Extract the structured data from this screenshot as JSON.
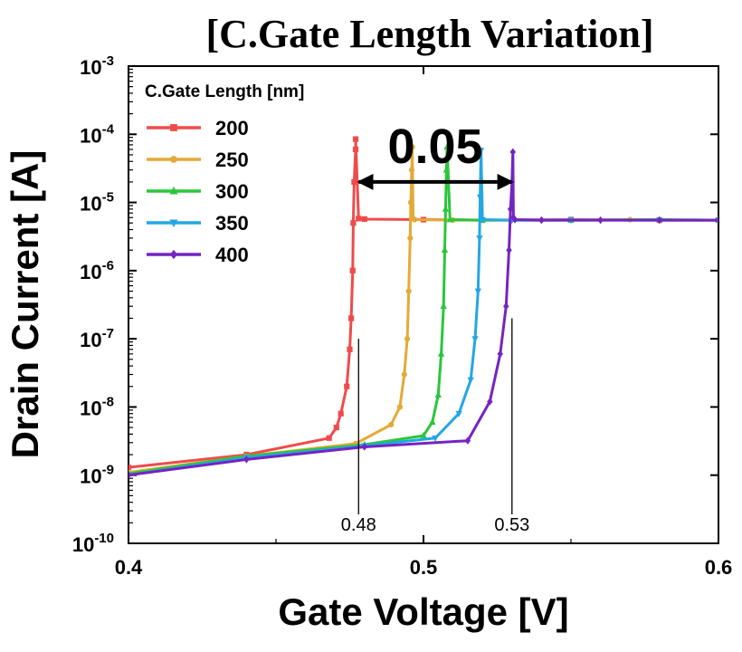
{
  "chart_data": {
    "type": "line",
    "title": "[C.Gate Length Variation]",
    "xlabel": "Gate Voltage [V]",
    "ylabel": "Drain Current [A]",
    "xlim": [
      0.4,
      0.6
    ],
    "ylim": [
      1e-10,
      0.001
    ],
    "yscale": "log",
    "x_ticks": [
      {
        "value": 0.4,
        "label": "0.4"
      },
      {
        "value": 0.5,
        "label": "0.5"
      },
      {
        "value": 0.6,
        "label": "0.6"
      }
    ],
    "y_ticks": [
      {
        "value": 0.001,
        "base": "10",
        "exp": "-3"
      },
      {
        "value": 0.0001,
        "base": "10",
        "exp": "-4"
      },
      {
        "value": 1e-05,
        "base": "10",
        "exp": "-5"
      },
      {
        "value": 1e-06,
        "base": "10",
        "exp": "-6"
      },
      {
        "value": 1e-07,
        "base": "10",
        "exp": "-7"
      },
      {
        "value": 1e-08,
        "base": "10",
        "exp": "-8"
      },
      {
        "value": 1e-09,
        "base": "10",
        "exp": "-9"
      },
      {
        "value": 1e-10,
        "base": "10",
        "exp": "-10"
      }
    ],
    "legend": {
      "title": "C.Gate Length [nm]",
      "placement": "top-left"
    },
    "grid": false,
    "series": [
      {
        "name": "200",
        "color": "#ef4b4b",
        "marker": "square",
        "x": [
          0.4,
          0.44,
          0.468,
          0.4705,
          0.472,
          0.474,
          0.475,
          0.4755,
          0.476,
          0.4762,
          0.4765,
          0.477,
          0.477,
          0.478,
          0.48,
          0.5,
          0.52,
          0.55,
          0.58,
          0.6
        ],
        "y": [
          1.3e-09,
          2e-09,
          3.5e-09,
          5e-09,
          8e-09,
          2e-08,
          7e-08,
          2e-07,
          1e-06,
          5e-06,
          2e-05,
          6e-05,
          8.5e-05,
          5.8e-06,
          5.7e-06,
          5.6e-06,
          5.5e-06,
          5.6e-06,
          5.5e-06,
          5.5e-06
        ]
      },
      {
        "name": "250",
        "color": "#e3aa38",
        "marker": "circle",
        "x": [
          0.4,
          0.44,
          0.477,
          0.489,
          0.492,
          0.4935,
          0.4945,
          0.495,
          0.4955,
          0.4957,
          0.496,
          0.4962,
          0.4965,
          0.497,
          0.51,
          0.54,
          0.57,
          0.6
        ],
        "y": [
          1.1e-09,
          1.9e-09,
          2.9e-09,
          5.5e-09,
          1e-08,
          3e-08,
          1e-07,
          5e-07,
          3e-06,
          1e-05,
          3e-05,
          6.5e-05,
          5.8e-06,
          5.6e-06,
          5.5e-06,
          5.5e-06,
          5.6e-06,
          5.5e-06
        ]
      },
      {
        "name": "300",
        "color": "#2ac63a",
        "marker": "triangle",
        "x": [
          0.4,
          0.44,
          0.48,
          0.5,
          0.503,
          0.505,
          0.506,
          0.5068,
          0.5072,
          0.5075,
          0.5078,
          0.508,
          0.509,
          0.52,
          0.55,
          0.58,
          0.6
        ],
        "y": [
          1.05e-09,
          1.9e-09,
          2.8e-09,
          3.8e-09,
          6e-09,
          1.5e-08,
          6e-08,
          3e-07,
          2e-06,
          8e-06,
          3e-05,
          6.5e-05,
          5.6e-06,
          5.5e-06,
          5.5e-06,
          5.6e-06,
          5.5e-06
        ]
      },
      {
        "name": "350",
        "color": "#23a7e4",
        "marker": "invtriangle",
        "x": [
          0.4,
          0.44,
          0.48,
          0.504,
          0.512,
          0.516,
          0.5175,
          0.5185,
          0.519,
          0.5192,
          0.5195,
          0.52,
          0.53,
          0.55,
          0.58,
          0.6
        ],
        "y": [
          1e-09,
          1.8e-09,
          2.7e-09,
          3.5e-09,
          8e-09,
          2.5e-08,
          1e-07,
          5e-07,
          3e-06,
          1.2e-05,
          5.8e-05,
          5.6e-06,
          5.5e-06,
          5.5e-06,
          5.5e-06,
          5.5e-06
        ]
      },
      {
        "name": "400",
        "color": "#7424c2",
        "marker": "diamond",
        "x": [
          0.4,
          0.44,
          0.48,
          0.515,
          0.5225,
          0.526,
          0.528,
          0.529,
          0.5295,
          0.53,
          0.5303,
          0.5305,
          0.531,
          0.54,
          0.56,
          0.58,
          0.6
        ],
        "y": [
          1e-09,
          1.7e-09,
          2.6e-09,
          3.2e-09,
          1.2e-08,
          6e-08,
          3e-07,
          2e-06,
          8e-06,
          2e-05,
          5.5e-05,
          6e-06,
          5.6e-06,
          5.5e-06,
          5.5e-06,
          5.5e-06,
          5.5e-06
        ]
      }
    ],
    "annotations": {
      "delta_label": "0.05",
      "arrow": {
        "x1": 0.478,
        "x2": 0.53,
        "y": 2e-05
      },
      "vlines": [
        {
          "x": 0.478,
          "label": "0.48",
          "y_top": 1e-07
        },
        {
          "x": 0.53,
          "label": "0.53",
          "y_top": 2e-07
        }
      ]
    }
  }
}
